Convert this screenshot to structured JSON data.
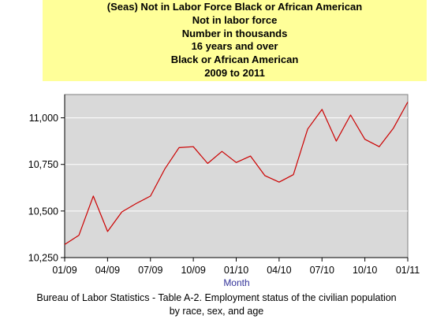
{
  "title_lines": [
    "(Seas) Not in Labor Force Black or African American",
    "Not in labor force",
    "Number in thousands",
    "16 years and over",
    "Black or African American",
    "2009 to 2011"
  ],
  "source_lines": [
    "Bureau of Labor Statistics - Table A-2. Employment status of the civilian population",
    "by race, sex, and age"
  ],
  "colors": {
    "title_background": "#ffff99",
    "plot_background": "#d9d9d9",
    "series_line": "#cc0000",
    "axis_label": "#333399"
  },
  "chart_data": {
    "type": "line",
    "xlabel": "Month",
    "ylabel": "",
    "x_tick_labels": [
      "01/09",
      "04/09",
      "07/09",
      "10/09",
      "01/10",
      "04/10",
      "07/10",
      "10/10",
      "01/11"
    ],
    "y_ticks": [
      10250,
      10500,
      10750,
      11000
    ],
    "y_tick_labels": [
      "10,250",
      "10,500",
      "10,750",
      "11,000"
    ],
    "ylim": [
      10250,
      11125
    ],
    "grid": "horizontal",
    "legend": "none",
    "x": [
      "01/09",
      "02/09",
      "03/09",
      "04/09",
      "05/09",
      "06/09",
      "07/09",
      "08/09",
      "09/09",
      "10/09",
      "11/09",
      "12/09",
      "01/10",
      "02/10",
      "03/10",
      "04/10",
      "05/10",
      "06/10",
      "07/10",
      "08/10",
      "09/10",
      "10/10",
      "11/10",
      "12/10",
      "01/11"
    ],
    "values": [
      10320,
      10370,
      10580,
      10390,
      10495,
      10540,
      10580,
      10725,
      10840,
      10845,
      10755,
      10820,
      10760,
      10795,
      10690,
      10655,
      10695,
      10940,
      11045,
      10875,
      11015,
      10885,
      10845,
      10945,
      11085
    ]
  }
}
